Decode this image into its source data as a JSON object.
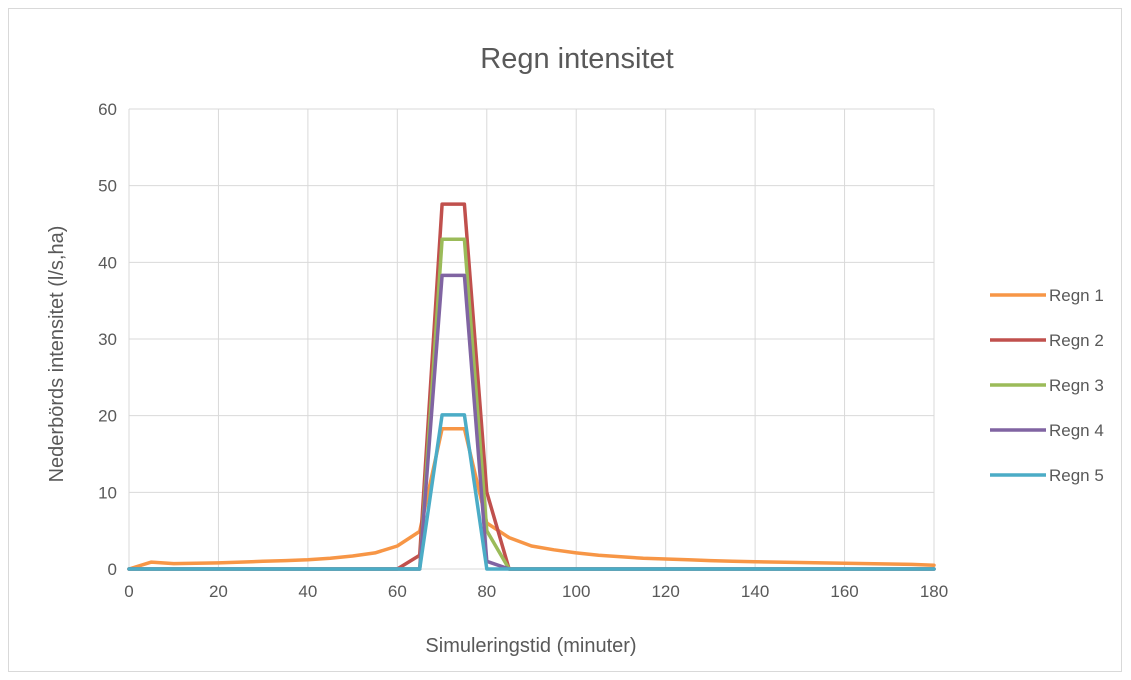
{
  "chart_data": {
    "type": "line",
    "title": "Regn intensitet",
    "xlabel": "Simuleringstid (minuter)",
    "ylabel": "Nederbörds intensitet (l/s,ha)",
    "xlim": [
      0,
      180
    ],
    "ylim": [
      0,
      60
    ],
    "xticks": [
      0,
      20,
      40,
      60,
      80,
      100,
      120,
      140,
      160,
      180
    ],
    "yticks": [
      0,
      10,
      20,
      30,
      40,
      50,
      60
    ],
    "grid": true,
    "legend_position": "right",
    "series": [
      {
        "name": "Regn 1",
        "color": "#F79646",
        "x": [
          0,
          5,
          10,
          15,
          20,
          25,
          30,
          35,
          40,
          45,
          50,
          55,
          60,
          65,
          70,
          75,
          80,
          85,
          90,
          95,
          100,
          105,
          110,
          115,
          120,
          125,
          130,
          135,
          140,
          145,
          150,
          155,
          160,
          165,
          170,
          175,
          180
        ],
        "y": [
          0,
          0.9,
          0.7,
          0.75,
          0.8,
          0.9,
          1.0,
          1.1,
          1.2,
          1.4,
          1.7,
          2.1,
          3.0,
          4.9,
          18.3,
          18.3,
          6.0,
          4.1,
          3.0,
          2.5,
          2.1,
          1.8,
          1.6,
          1.4,
          1.3,
          1.2,
          1.1,
          1.0,
          0.95,
          0.9,
          0.85,
          0.8,
          0.75,
          0.7,
          0.65,
          0.6,
          0.5
        ]
      },
      {
        "name": "Regn 2",
        "color": "#C0504D",
        "x": [
          0,
          60,
          65,
          70,
          75,
          80,
          85,
          180
        ],
        "y": [
          0,
          0,
          1.8,
          47.6,
          47.6,
          10.0,
          0,
          0
        ]
      },
      {
        "name": "Regn 3",
        "color": "#9BBB59",
        "x": [
          0,
          65,
          70,
          75,
          80,
          85,
          180
        ],
        "y": [
          0,
          0,
          43.0,
          43.0,
          5.0,
          0,
          0
        ]
      },
      {
        "name": "Regn 4",
        "color": "#8064A2",
        "x": [
          0,
          65,
          70,
          75,
          80,
          85,
          180
        ],
        "y": [
          0,
          0,
          38.3,
          38.3,
          1.0,
          0,
          0
        ]
      },
      {
        "name": "Regn 5",
        "color": "#4BACC6",
        "x": [
          0,
          65,
          70,
          75,
          80,
          180
        ],
        "y": [
          0,
          0,
          20.1,
          20.1,
          0,
          0
        ]
      }
    ]
  }
}
